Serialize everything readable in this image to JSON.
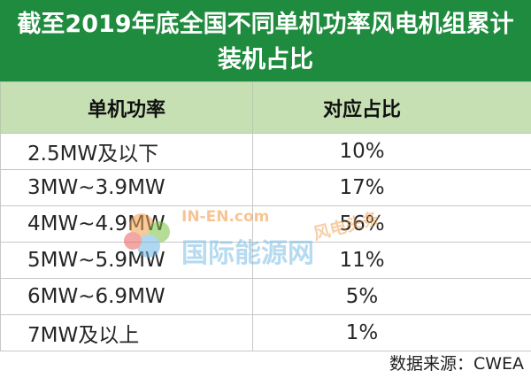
{
  "colors": {
    "title_bg": "#1e8b3e",
    "header_bg": "#c6e0b4",
    "watermark_orange": "#f2a04e",
    "watermark_green": "#7cc242",
    "watermark_blue": "#6fb7e3"
  },
  "chart_data": {
    "type": "table",
    "title_lines": [
      "截至2019年底全国不同单机功率风电机组累计",
      "装机占比"
    ],
    "columns": [
      "单机功率",
      "对应占比"
    ],
    "rows": [
      {
        "power": "2.5MW及以下",
        "share": "10%"
      },
      {
        "power": "3MW~3.9MW",
        "share": "17%"
      },
      {
        "power": "4MW~4.9MW",
        "share": "56%"
      },
      {
        "power": "5MW~5.9MW",
        "share": "11%"
      },
      {
        "power": "6MW~6.9MW",
        "share": "5%"
      },
      {
        "power": "7MW及以上",
        "share": "1%"
      }
    ],
    "source": "数据来源：CWEA"
  },
  "watermark": {
    "site": "IN-EN.com",
    "name": "国际能源网",
    "tag": "风电头条"
  }
}
